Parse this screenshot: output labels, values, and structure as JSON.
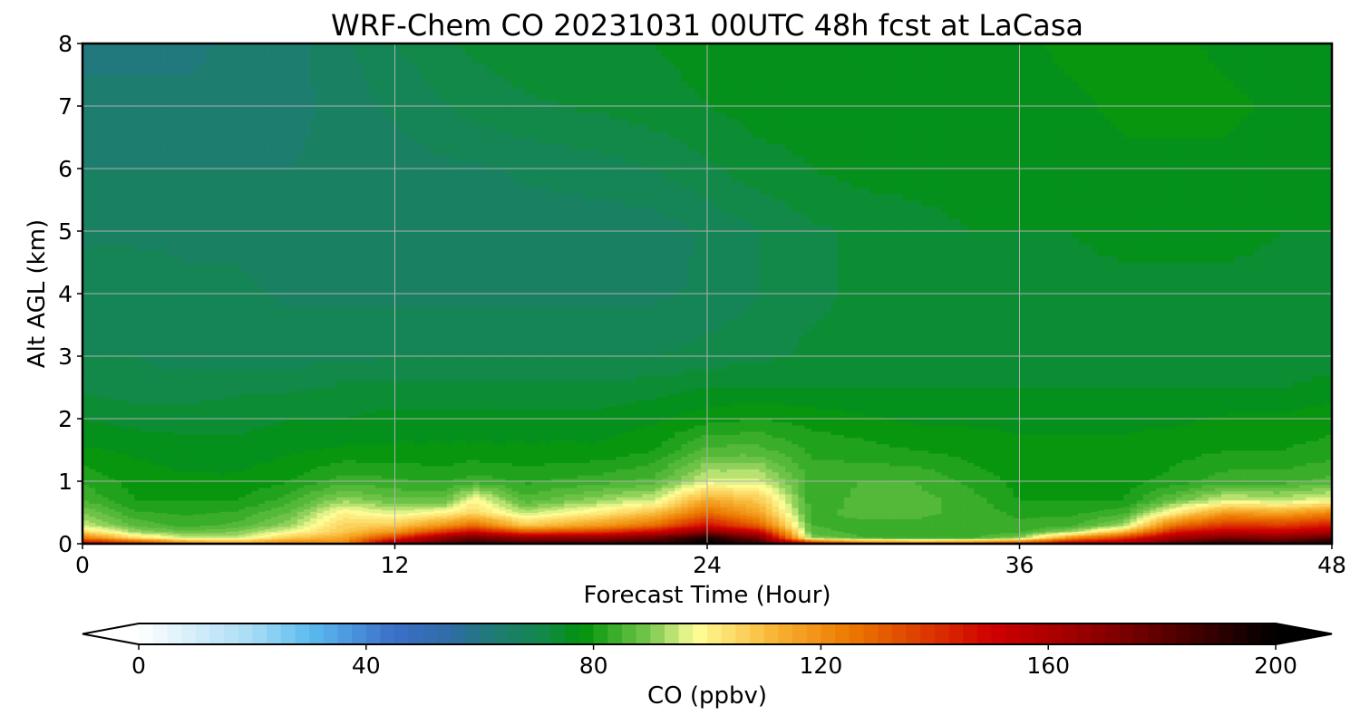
{
  "chart_data": {
    "type": "heatmap",
    "title": "WRF-Chem CO  20231031 00UTC 48h fcst at LaCasa",
    "xlabel": "Forecast Time (Hour)",
    "ylabel": "Alt AGL (km)",
    "xlim": [
      0,
      48
    ],
    "ylim": [
      0,
      8
    ],
    "xticks": [
      0,
      12,
      24,
      36,
      48
    ],
    "yticks": [
      0,
      1,
      2,
      3,
      4,
      5,
      6,
      7,
      8
    ],
    "grid": true,
    "colorbar": {
      "label": "CO  (ppbv)",
      "ticks": [
        0,
        40,
        80,
        120,
        160,
        200
      ],
      "range": [
        0,
        200
      ],
      "extend": "both",
      "color_stops": [
        {
          "value": 0,
          "color": "#ffffff"
        },
        {
          "value": 20,
          "color": "#a7dcf5"
        },
        {
          "value": 30,
          "color": "#5cbcf0"
        },
        {
          "value": 45,
          "color": "#3a6fc8"
        },
        {
          "value": 55,
          "color": "#2e6da4"
        },
        {
          "value": 62,
          "color": "#1f7a78"
        },
        {
          "value": 72,
          "color": "#118a45"
        },
        {
          "value": 78,
          "color": "#00930b"
        },
        {
          "value": 90,
          "color": "#7ac94e"
        },
        {
          "value": 98,
          "color": "#ffff99"
        },
        {
          "value": 112,
          "color": "#f8b333"
        },
        {
          "value": 125,
          "color": "#ec7a00"
        },
        {
          "value": 150,
          "color": "#d00000"
        },
        {
          "value": 170,
          "color": "#8a0000"
        },
        {
          "value": 200,
          "color": "#000000"
        }
      ]
    },
    "field": {
      "times": [
        0,
        2,
        4,
        6,
        8,
        10,
        12,
        14,
        15,
        17,
        20,
        22,
        24,
        26,
        28,
        30,
        32,
        34,
        36,
        38,
        40,
        42,
        44,
        46,
        48
      ],
      "heights": [
        0,
        0.1,
        0.2,
        0.3,
        0.5,
        0.7,
        1.0,
        1.5,
        2.0,
        2.5,
        3.0,
        4.0,
        5.0,
        6.0,
        7.0,
        8.0
      ],
      "values": [
        [
          160,
          150,
          128,
          120,
          128,
          122,
          170,
          185,
          190,
          188,
          190,
          192,
          200,
          190,
          160,
          140,
          135,
          138,
          148,
          165,
          165,
          185,
          195,
          190,
          200
        ],
        [
          125,
          105,
          95,
          95,
          108,
          115,
          140,
          170,
          178,
          168,
          170,
          178,
          195,
          175,
          90,
          85,
          84,
          84,
          90,
          120,
          140,
          165,
          175,
          172,
          180
        ],
        [
          105,
          92,
          88,
          90,
          98,
          108,
          118,
          140,
          150,
          132,
          138,
          150,
          170,
          150,
          86,
          84,
          84,
          83,
          84,
          92,
          110,
          145,
          155,
          152,
          160
        ],
        [
          95,
          87,
          84,
          86,
          92,
          106,
          108,
          120,
          128,
          108,
          118,
          128,
          148,
          130,
          85,
          84,
          84,
          83,
          83,
          84,
          92,
          128,
          140,
          138,
          145
        ],
        [
          90,
          83,
          82,
          83,
          88,
          100,
          96,
          100,
          105,
          94,
          102,
          110,
          128,
          115,
          84,
          86,
          86,
          84,
          82,
          82,
          84,
          102,
          118,
          115,
          122
        ],
        [
          85,
          80,
          80,
          80,
          84,
          92,
          88,
          88,
          100,
          86,
          92,
          96,
          115,
          108,
          83,
          86,
          86,
          84,
          80,
          80,
          80,
          88,
          96,
          94,
          98
        ],
        [
          82,
          79,
          78,
          78,
          80,
          84,
          83,
          82,
          84,
          82,
          84,
          86,
          96,
          96,
          84,
          85,
          85,
          82,
          79,
          79,
          79,
          81,
          84,
          84,
          86
        ],
        [
          78,
          77,
          76,
          76,
          77,
          78,
          78,
          78,
          78,
          78,
          78,
          80,
          86,
          86,
          82,
          81,
          80,
          79,
          78,
          78,
          78,
          79,
          80,
          80,
          81
        ],
        [
          75,
          74,
          74,
          74,
          75,
          75,
          76,
          76,
          76,
          76,
          76,
          77,
          79,
          80,
          79,
          78,
          77,
          77,
          77,
          77,
          77,
          77,
          78,
          78,
          79
        ],
        [
          72,
          71,
          71,
          72,
          72,
          73,
          73,
          73,
          73,
          73,
          73,
          74,
          75,
          75,
          75,
          75,
          75,
          75,
          75,
          75,
          75,
          75,
          75,
          75,
          76
        ],
        [
          70,
          70,
          69,
          69,
          69,
          69,
          70,
          70,
          70,
          70,
          70,
          70,
          71,
          72,
          73,
          73,
          74,
          74,
          74,
          74,
          74,
          74,
          74,
          73,
          74
        ],
        [
          69,
          69,
          68,
          68,
          67,
          67,
          67,
          67,
          67,
          67,
          67,
          67,
          68,
          70,
          72,
          73,
          74,
          74,
          74,
          74,
          74,
          74,
          74,
          74,
          74
        ],
        [
          67,
          67,
          67,
          67,
          66,
          66,
          66,
          66,
          66,
          66,
          66,
          66,
          68,
          70,
          72,
          73,
          74,
          75,
          75,
          75,
          76,
          76,
          76,
          75,
          75
        ],
        [
          65,
          65,
          65,
          65,
          65,
          66,
          66,
          67,
          67,
          68,
          69,
          70,
          72,
          74,
          75,
          76,
          76,
          76,
          76,
          76,
          77,
          77,
          77,
          76,
          76
        ],
        [
          63,
          63,
          63,
          63,
          64,
          66,
          68,
          70,
          71,
          72,
          73,
          74,
          75,
          76,
          76,
          76,
          76,
          76,
          77,
          77,
          78,
          78,
          78,
          77,
          76
        ],
        [
          62,
          62,
          62,
          63,
          64,
          67,
          70,
          72,
          73,
          74,
          75,
          75,
          76,
          77,
          77,
          76,
          75,
          76,
          77,
          78,
          79,
          78,
          77,
          76,
          76
        ]
      ]
    }
  }
}
